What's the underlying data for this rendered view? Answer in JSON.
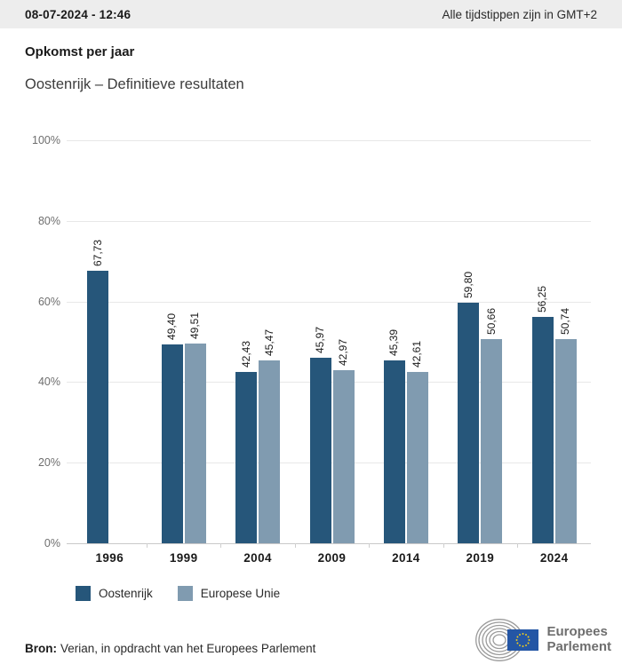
{
  "header": {
    "datetime": "08-07-2024 - 12:46",
    "timezone_note": "Alle tijdstippen zijn in GMT+2"
  },
  "title": "Opkomst per jaar",
  "subtitle": "Oostenrijk – Definitieve resultaten",
  "chart_data": {
    "type": "bar",
    "categories": [
      "1996",
      "1999",
      "2004",
      "2009",
      "2014",
      "2019",
      "2024"
    ],
    "series": [
      {
        "name": "Oostenrijk",
        "color": "#26567a",
        "values": [
          67.73,
          49.4,
          42.43,
          45.97,
          45.39,
          59.8,
          56.25
        ]
      },
      {
        "name": "Europese Unie",
        "color": "#809bb0",
        "values": [
          null,
          49.51,
          45.47,
          42.97,
          42.61,
          50.66,
          50.74
        ]
      }
    ],
    "ylim": [
      0,
      100
    ],
    "yticks": [
      0,
      20,
      40,
      60,
      80,
      100
    ],
    "ytick_suffix": "%",
    "value_label_decimal": "comma",
    "grid": true,
    "legend_position": "bottom"
  },
  "footer": {
    "source_label": "Bron:",
    "source_text": "Verian, in opdracht van het Europees Parlement",
    "logo": {
      "line1": "Europees",
      "line2": "Parlement"
    }
  },
  "colors": {
    "header_bg": "#ededed",
    "gridline": "#e8e8e8",
    "axis_line": "#c9c9c9",
    "axis_label": "#6e6e6e",
    "series_austria": "#26567a",
    "series_eu": "#809bb0",
    "eu_flag_blue": "#2456a5",
    "eu_star_yellow": "#f7d117",
    "logo_gray": "#9a9a9a"
  }
}
